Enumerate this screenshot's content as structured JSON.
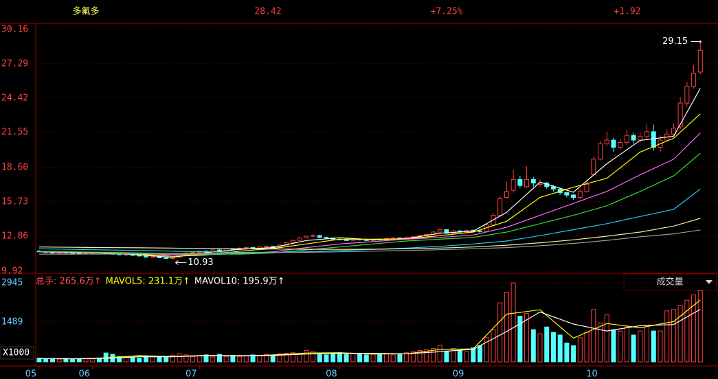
{
  "chart_data": {
    "type": "candlestick",
    "title": "多氟多",
    "change": "+1.92",
    "change_pct": "+7.25%",
    "ylim": [
      9.92,
      30.16
    ],
    "yticks": [
      9.92,
      12.86,
      15.73,
      {
        "value": 18.6,
        "label": "18.60"
      },
      21.55,
      24.42,
      27.29,
      30.16
    ],
    "grid": true,
    "up_color": "#ff3c3c",
    "down_color": "#54ffff",
    "categories": [
      "05",
      null,
      null,
      null,
      null,
      null,
      null,
      null,
      "06",
      null,
      null,
      null,
      null,
      null,
      null,
      null,
      null,
      null,
      null,
      null,
      null,
      null,
      null,
      null,
      "07",
      null,
      null,
      null,
      null,
      null,
      null,
      null,
      null,
      null,
      null,
      null,
      null,
      null,
      null,
      null,
      null,
      null,
      null,
      null,
      null,
      "08",
      null,
      null,
      null,
      null,
      null,
      null,
      null,
      null,
      null,
      null,
      null,
      null,
      null,
      null,
      null,
      null,
      null,
      null,
      "09",
      null,
      null,
      null,
      null,
      null,
      null,
      null,
      null,
      null,
      null,
      null,
      null,
      null,
      null,
      null,
      null,
      null,
      null,
      null,
      "10",
      null,
      null,
      null,
      null,
      null,
      null,
      null,
      null,
      null,
      null,
      null,
      null,
      null,
      null,
      null
    ],
    "open": [
      11.6,
      11.55,
      11.5,
      11.42,
      11.5,
      11.48,
      11.45,
      11.38,
      11.42,
      11.5,
      11.45,
      11.4,
      11.35,
      11.28,
      11.32,
      11.25,
      11.2,
      11.08,
      11.15,
      11.05,
      10.98,
      11.1,
      11.3,
      11.45,
      11.5,
      11.6,
      11.55,
      11.7,
      11.65,
      11.8,
      11.75,
      11.85,
      11.9,
      11.8,
      11.95,
      12.0,
      11.9,
      12.1,
      12.3,
      12.5,
      12.7,
      12.85,
      12.9,
      12.75,
      12.7,
      12.6,
      12.55,
      12.5,
      12.6,
      12.55,
      12.5,
      12.6,
      12.55,
      12.65,
      12.7,
      12.6,
      12.75,
      12.8,
      12.9,
      13.0,
      13.2,
      13.4,
      13.1,
      13.3,
      13.2,
      13.35,
      13.3,
      13.25,
      13.8,
      14.6,
      16.1,
      16.7,
      17.6,
      17.0,
      17.6,
      17.2,
      17.3,
      17.0,
      16.8,
      16.5,
      16.3,
      16.1,
      16.6,
      18.0,
      19.3,
      20.6,
      20.9,
      20.3,
      20.7,
      21.3,
      20.9,
      21.2,
      21.6,
      20.3,
      20.9,
      21.4,
      22.0,
      24.0,
      25.4,
      26.6
    ],
    "high": [
      11.68,
      11.6,
      11.56,
      11.56,
      11.55,
      11.53,
      11.5,
      11.48,
      11.56,
      11.55,
      11.52,
      11.45,
      11.42,
      11.38,
      11.36,
      11.3,
      11.25,
      11.2,
      11.2,
      11.1,
      11.15,
      11.35,
      11.5,
      11.58,
      11.66,
      11.65,
      11.75,
      11.76,
      11.86,
      11.85,
      11.9,
      11.98,
      11.95,
      12.0,
      12.08,
      12.05,
      12.15,
      12.36,
      12.58,
      12.78,
      12.95,
      13.05,
      12.98,
      12.82,
      12.76,
      12.66,
      12.6,
      12.66,
      12.66,
      12.6,
      12.66,
      12.65,
      12.72,
      12.78,
      12.75,
      12.82,
      12.88,
      12.98,
      13.1,
      13.3,
      13.5,
      13.45,
      13.38,
      13.36,
      13.42,
      13.42,
      13.38,
      13.9,
      14.8,
      16.2,
      17.4,
      18.4,
      17.9,
      18.7,
      17.8,
      17.6,
      17.4,
      17.1,
      16.9,
      16.6,
      16.4,
      16.8,
      17.4,
      19.5,
      20.8,
      21.6,
      21.1,
      21.0,
      21.8,
      21.5,
      21.5,
      22.2,
      22.2,
      21.3,
      21.8,
      22.3,
      24.5,
      25.8,
      27.2,
      29.15
    ],
    "low": [
      11.5,
      11.45,
      11.4,
      11.38,
      11.42,
      11.4,
      11.35,
      11.33,
      11.38,
      11.4,
      11.35,
      11.3,
      11.25,
      11.24,
      11.2,
      11.15,
      11.05,
      11.03,
      11.0,
      10.95,
      10.93,
      11.05,
      11.25,
      11.4,
      11.45,
      11.5,
      11.5,
      11.6,
      11.6,
      11.7,
      11.7,
      11.8,
      11.75,
      11.75,
      11.9,
      11.85,
      11.85,
      12.05,
      12.25,
      12.45,
      12.65,
      12.8,
      12.7,
      12.62,
      12.55,
      12.5,
      12.44,
      12.45,
      12.5,
      12.45,
      12.45,
      12.5,
      12.5,
      12.6,
      12.55,
      12.55,
      12.7,
      12.75,
      12.85,
      12.95,
      13.1,
      13.05,
      13.05,
      13.12,
      13.15,
      13.22,
      13.15,
      13.2,
      13.7,
      14.5,
      16.0,
      16.5,
      16.9,
      16.9,
      17.0,
      17.0,
      16.8,
      16.6,
      16.3,
      16.1,
      15.9,
      16.0,
      16.5,
      17.9,
      19.2,
      20.4,
      19.9,
      20.1,
      20.5,
      20.6,
      20.7,
      21.0,
      20.0,
      19.9,
      20.8,
      21.2,
      21.8,
      23.7,
      25.2,
      26.4
    ],
    "close": [
      11.55,
      11.5,
      11.45,
      11.5,
      11.48,
      11.45,
      11.4,
      11.42,
      11.5,
      11.45,
      11.4,
      11.35,
      11.3,
      11.32,
      11.25,
      11.2,
      11.1,
      11.15,
      11.05,
      11.0,
      11.1,
      11.3,
      11.45,
      11.5,
      11.6,
      11.55,
      11.7,
      11.65,
      11.8,
      11.75,
      11.85,
      11.9,
      11.8,
      11.95,
      12.0,
      11.9,
      12.1,
      12.3,
      12.5,
      12.7,
      12.85,
      12.9,
      12.75,
      12.7,
      12.6,
      12.55,
      12.5,
      12.6,
      12.55,
      12.5,
      12.6,
      12.55,
      12.65,
      12.7,
      12.6,
      12.75,
      12.8,
      12.9,
      13.0,
      13.2,
      13.4,
      13.1,
      13.3,
      13.2,
      13.35,
      13.3,
      13.25,
      13.8,
      14.6,
      16.0,
      16.6,
      17.6,
      17.1,
      17.6,
      17.3,
      17.3,
      17.0,
      16.8,
      16.5,
      16.3,
      16.1,
      16.6,
      17.2,
      19.3,
      20.6,
      20.9,
      20.3,
      20.7,
      21.3,
      20.9,
      21.2,
      21.6,
      20.3,
      20.9,
      21.4,
      21.9,
      24.0,
      25.4,
      26.5,
      28.42
    ],
    "ma_x": [
      0,
      5,
      10,
      15,
      20,
      25,
      30,
      35,
      40,
      45,
      50,
      55,
      60,
      65,
      70,
      75,
      80,
      85,
      90,
      95,
      99
    ],
    "moving_averages": [
      {
        "color": "#ffffff",
        "values": [
          11.55,
          11.47,
          11.44,
          11.29,
          11.08,
          11.47,
          11.75,
          11.9,
          12.49,
          12.72,
          12.56,
          12.65,
          13.1,
          13.28,
          14.85,
          17.38,
          16.54,
          18.92,
          20.88,
          21.22,
          25.24
        ]
      },
      {
        "color": "#ffff00",
        "values": [
          11.55,
          11.5,
          11.45,
          11.36,
          11.17,
          11.27,
          11.6,
          11.82,
          12.2,
          12.6,
          12.6,
          12.62,
          12.9,
          13.2,
          14.1,
          16.1,
          16.95,
          17.7,
          19.9,
          21.05,
          23.1
        ]
      },
      {
        "color": "#ff66ff",
        "values": [
          11.55,
          11.52,
          11.47,
          11.42,
          11.3,
          11.3,
          11.4,
          11.55,
          11.9,
          12.2,
          12.4,
          12.6,
          12.75,
          12.95,
          13.6,
          14.6,
          15.6,
          16.6,
          18.0,
          19.3,
          21.5
        ]
      },
      {
        "color": "#33dd33",
        "values": [
          11.6,
          11.55,
          11.5,
          11.45,
          11.38,
          11.35,
          11.35,
          11.45,
          11.7,
          11.95,
          12.2,
          12.45,
          12.6,
          12.75,
          13.2,
          13.9,
          14.6,
          15.4,
          16.6,
          17.9,
          19.8
        ]
      },
      {
        "color": "#22ccee",
        "values": [
          11.8,
          11.75,
          11.7,
          11.65,
          11.6,
          11.55,
          11.5,
          11.5,
          11.55,
          11.65,
          11.75,
          11.85,
          12.0,
          12.2,
          12.45,
          12.9,
          13.4,
          13.9,
          14.5,
          15.1,
          16.8
        ]
      },
      {
        "color": "#eeeeaa",
        "values": [
          11.95,
          11.92,
          11.9,
          11.88,
          11.85,
          11.82,
          11.8,
          11.78,
          11.76,
          11.75,
          11.76,
          11.8,
          11.86,
          11.95,
          12.1,
          12.3,
          12.55,
          12.85,
          13.2,
          13.7,
          14.35
        ]
      },
      {
        "color": "#999999",
        "values": [
          11.35,
          11.35,
          11.36,
          11.38,
          11.4,
          11.42,
          11.45,
          11.48,
          11.5,
          11.55,
          11.6,
          11.65,
          11.72,
          11.8,
          11.9,
          12.05,
          12.25,
          12.5,
          12.8,
          13.05,
          13.37
        ]
      }
    ],
    "volume": [
      140,
      120,
      110,
      100,
      130,
      90,
      100,
      110,
      120,
      100,
      330,
      280,
      200,
      180,
      150,
      140,
      220,
      180,
      200,
      170,
      250,
      300,
      260,
      200,
      220,
      260,
      180,
      280,
      200,
      240,
      200,
      220,
      260,
      240,
      280,
      260,
      300,
      320,
      340,
      300,
      420,
      380,
      300,
      260,
      300,
      340,
      280,
      300,
      320,
      260,
      280,
      300,
      320,
      260,
      300,
      340,
      380,
      420,
      450,
      500,
      620,
      400,
      500,
      420,
      380,
      520,
      600,
      900,
      1200,
      2200,
      2600,
      2945,
      1700,
      1800,
      1200,
      1050,
      1300,
      1100,
      1000,
      700,
      600,
      900,
      1100,
      1950,
      1450,
      1750,
      1200,
      1150,
      1300,
      1000,
      1150,
      1350,
      1150,
      1150,
      1900,
      1950,
      2100,
      2300,
      2500,
      2656
    ],
    "vol_ylim": [
      0,
      2945
    ],
    "vol_yticks": [
      1489,
      2945
    ],
    "vol_unit": "X1000",
    "vol_ma": [
      {
        "color": "#ffff00",
        "values": [
          120,
          110,
          150,
          230,
          200,
          240,
          220,
          256,
          328,
          340,
          290,
          300,
          460,
          484,
          1780,
          1940,
          880,
          1430,
          1270,
          1500,
          2311
        ]
      },
      {
        "color": "#ffffff",
        "values": [
          120,
          115,
          130,
          190,
          190,
          230,
          230,
          240,
          290,
          320,
          315,
          300,
          380,
          470,
          1130,
          1860,
          1410,
          1150,
          1350,
          1390,
          1959
        ]
      }
    ],
    "volume_legend": [
      {
        "text": "总手: 265.6万↑",
        "color": "#ff5050"
      },
      {
        "text": "MAVOL5: 231.1万↑",
        "color": "#ffff00"
      },
      {
        "text": "MAVOL10: 195.9万↑",
        "color": "#ffffff"
      }
    ],
    "indicator_menu": "成交量"
  }
}
